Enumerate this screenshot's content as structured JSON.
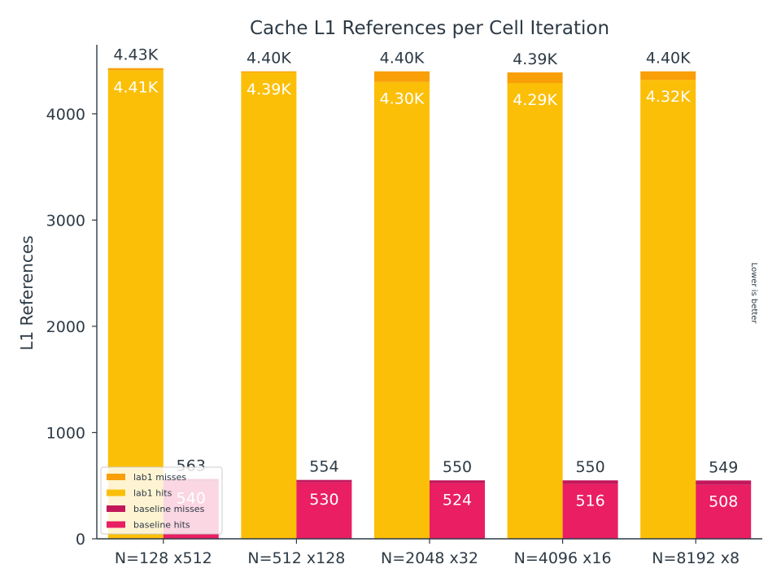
{
  "chart_data": {
    "type": "bar",
    "title": "Cache L1 References per Cell Iteration",
    "xlabel": "",
    "ylabel": "L1 References",
    "side_note": "Lower is better",
    "categories": [
      "N=128 x512",
      "N=512 x128",
      "N=2048 x32",
      "N=4096 x16",
      "N=8192 x8"
    ],
    "ylim": [
      0,
      4650
    ],
    "yticks": [
      0,
      1000,
      2000,
      3000,
      4000
    ],
    "grid": false,
    "legend_position": "lower-left",
    "stacked_groups": [
      {
        "group": "lab1",
        "series": [
          {
            "name": "lab1  hits",
            "color": "#fbbf08",
            "values": [
              4410,
              4390,
              4300,
              4290,
              4320
            ],
            "labels": [
              "4.41K",
              "4.39K",
              "4.30K",
              "4.29K",
              "4.32K"
            ]
          },
          {
            "name": "lab1  misses",
            "color": "#f99f08",
            "values": [
              20,
              10,
              100,
              100,
              80
            ]
          }
        ],
        "totals": [
          4430,
          4400,
          4400,
          4390,
          4400
        ],
        "total_labels": [
          "4.43K",
          "4.40K",
          "4.40K",
          "4.39K",
          "4.40K"
        ]
      },
      {
        "group": "baseline",
        "series": [
          {
            "name": "baseline  hits",
            "color": "#e91e63",
            "values": [
              540,
              530,
              524,
              516,
              508
            ],
            "labels": [
              "540",
              "530",
              "524",
              "516",
              "508"
            ]
          },
          {
            "name": "baseline  misses",
            "color": "#c2185b",
            "values": [
              23,
              24,
              26,
              34,
              41
            ]
          }
        ],
        "totals": [
          563,
          554,
          550,
          550,
          549
        ],
        "total_labels": [
          "563",
          "554",
          "550",
          "550",
          "549"
        ]
      }
    ],
    "legend": [
      {
        "label": "lab1  misses",
        "color": "#f99f08"
      },
      {
        "label": "lab1  hits",
        "color": "#fbbf08"
      },
      {
        "label": "baseline  misses",
        "color": "#c2185b"
      },
      {
        "label": "baseline  hits",
        "color": "#e91e63"
      }
    ]
  }
}
